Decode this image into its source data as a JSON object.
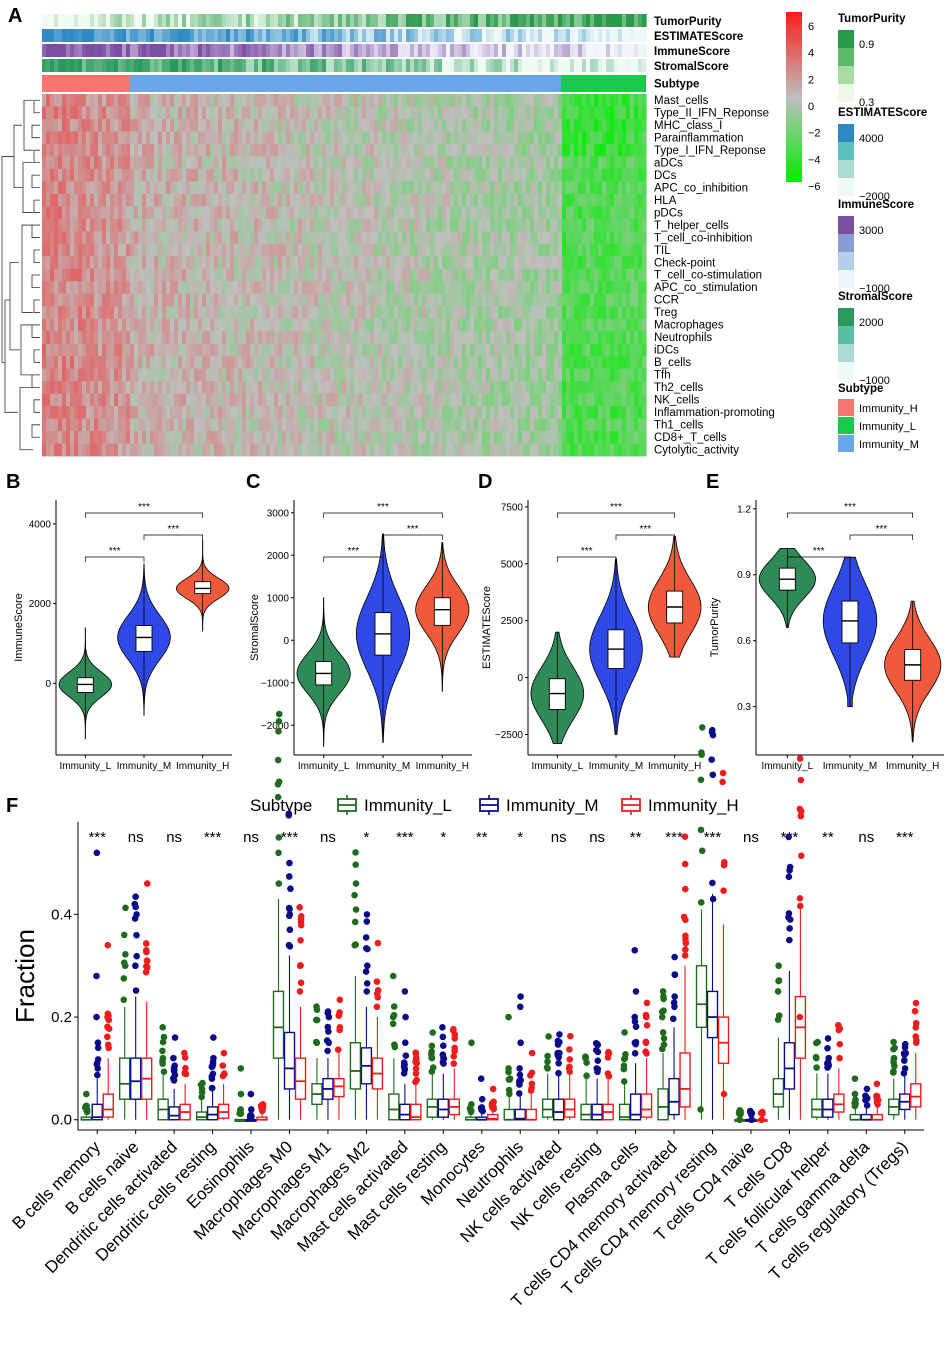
{
  "panel_labels": [
    "A",
    "B",
    "C",
    "D",
    "E",
    "F"
  ],
  "heatmap": {
    "annotation_tracks": [
      "TumorPurity",
      "ESTIMATEScore",
      "ImmuneScore",
      "StromalScore",
      "Subtype"
    ],
    "rows": [
      "Mast_cells",
      "Type_II_IFN_Reponse",
      "MHC_class_I",
      "Parainflammation",
      "Type_I_IFN_Reponse",
      "aDCs",
      "DCs",
      "APC_co_inhibition",
      "HLA",
      "pDCs",
      "T_helper_cells",
      "T_cell_co-inhibition",
      "TIL",
      "Check-point",
      "T_cell_co-stimulation",
      "APC_co_stimulation",
      "CCR",
      "Treg",
      "Macrophages",
      "Neutrophils",
      "iDCs",
      "B_cells",
      "Tfh",
      "Th2_cells",
      "NK_cells",
      "Inflammation-promoting",
      "Th1_cells",
      "CD8+_T_cells",
      "Cytolytic_activity"
    ],
    "colorbar": {
      "ticks": [
        "6",
        "4",
        "2",
        "0",
        "−2",
        "−4",
        "−6"
      ],
      "high": "#ff1a1a",
      "mid": "#bfbfbf",
      "low": "#00ee00"
    },
    "legend": {
      "tumor_purity": {
        "title": "TumorPurity",
        "labels": [
          "0.9",
          "0.3"
        ]
      },
      "estimate": {
        "title": "ESTIMATEScore",
        "labels": [
          "4000",
          "−2000"
        ]
      },
      "immune": {
        "title": "ImmuneScore",
        "labels": [
          "3000",
          "−1000"
        ]
      },
      "stromal": {
        "title": "StromalScore",
        "labels": [
          "2000",
          "−1000"
        ]
      },
      "subtype": {
        "title": "Subtype",
        "labels": [
          "Immunity_H",
          "Immunity_L",
          "Immunity_M"
        ]
      }
    },
    "subtype_colors": {
      "Immunity_H": "#f8766d",
      "Immunity_L": "#18c94b",
      "Immunity_M": "#6aa7ea"
    }
  },
  "chart_data": [
    {
      "type": "violin",
      "panel": "B",
      "ylabel": "ImmuneScore",
      "categories": [
        "Immunity_L",
        "Immunity_M",
        "Immunity_H"
      ],
      "yticks": [
        "0",
        "2000",
        "4000"
      ],
      "ylim": [
        -1800,
        4600
      ],
      "medians": [
        -30,
        1150,
        2380
      ],
      "q1": [
        -230,
        800,
        2250
      ],
      "q3": [
        140,
        1450,
        2550
      ],
      "min": [
        -1400,
        -800,
        1300
      ],
      "max": [
        1400,
        3000,
        3600
      ],
      "significance": [
        {
          "pair": "L-M",
          "label": "***"
        },
        {
          "pair": "M-H",
          "label": "***"
        },
        {
          "pair": "L-H",
          "label": "***"
        }
      ]
    },
    {
      "type": "violin",
      "panel": "C",
      "ylabel": "StromalScore",
      "categories": [
        "Immunity_L",
        "Immunity_M",
        "Immunity_H"
      ],
      "yticks": [
        "3000",
        "2000",
        "1000",
        "0",
        "−1000",
        "−2000"
      ],
      "ylim": [
        -2700,
        3300
      ],
      "medians": [
        -780,
        150,
        720
      ],
      "q1": [
        -1050,
        -350,
        350
      ],
      "q3": [
        -500,
        650,
        1000
      ],
      "min": [
        -2500,
        -2400,
        -1200
      ],
      "max": [
        1000,
        2500,
        2300
      ],
      "significance": [
        {
          "pair": "L-M",
          "label": "***"
        },
        {
          "pair": "M-H",
          "label": "***"
        },
        {
          "pair": "L-H",
          "label": "***"
        }
      ]
    },
    {
      "type": "violin",
      "panel": "D",
      "ylabel": "ESTIMATEScore",
      "categories": [
        "Immunity_L",
        "Immunity_M",
        "Immunity_H"
      ],
      "yticks": [
        "7500",
        "5000",
        "2500",
        "0",
        "−2500"
      ],
      "ylim": [
        -3400,
        7800
      ],
      "medians": [
        -700,
        1250,
        3100
      ],
      "q1": [
        -1400,
        400,
        2400
      ],
      "q3": [
        -50,
        2100,
        3800
      ],
      "min": [
        -2900,
        -2500,
        900
      ],
      "max": [
        2000,
        5200,
        6200
      ],
      "significance": [
        {
          "pair": "L-M",
          "label": "***"
        },
        {
          "pair": "M-H",
          "label": "***"
        },
        {
          "pair": "L-H",
          "label": "***"
        }
      ]
    },
    {
      "type": "violin",
      "panel": "E",
      "ylabel": "TumorPurity",
      "categories": [
        "Immunity_L",
        "Immunity_M",
        "Immunity_H"
      ],
      "yticks": [
        "1.2",
        "0.9",
        "0.6",
        "0.3"
      ],
      "ylim": [
        0.08,
        1.24
      ],
      "medians": [
        0.88,
        0.69,
        0.49
      ],
      "q1": [
        0.83,
        0.59,
        0.42
      ],
      "q3": [
        0.93,
        0.78,
        0.56
      ],
      "min": [
        0.66,
        0.3,
        0.14
      ],
      "max": [
        1.02,
        0.98,
        0.78
      ],
      "significance": [
        {
          "pair": "L-M",
          "label": "***"
        },
        {
          "pair": "M-H",
          "label": "***"
        },
        {
          "pair": "L-H",
          "label": "***"
        }
      ]
    },
    {
      "type": "boxplot",
      "panel": "F",
      "ylabel": "Fraction",
      "legend_title": "Subtype",
      "series_names": [
        "Immunity_L",
        "Immunity_M",
        "Immunity_H"
      ],
      "series_colors": [
        "#1e6b1e",
        "#0b0b8a",
        "#ee1c1c"
      ],
      "yticks": [
        "0.0",
        "0.2",
        "0.4"
      ],
      "ylim": [
        -0.02,
        0.58
      ],
      "categories": [
        "B cells memory",
        "B cells naive",
        "Dendritic cells activated",
        "Dendritic cells resting",
        "Eosinophils",
        "Macrophages M0",
        "Macrophages M1",
        "Macrophages M2",
        "Mast cells activated",
        "Mast cells resting",
        "Monocytes",
        "Neutrophils",
        "NK cells activated",
        "NK cells resting",
        "Plasma cells",
        "T cells CD4 memory activated",
        "T cells CD4 memory resting",
        "T cells CD4 naive",
        "T cells CD8",
        "T cells follicular helper",
        "T cells gamma delta",
        "T cells regulatory (Tregs)"
      ],
      "significance": [
        "***",
        "ns",
        "ns",
        "***",
        "ns",
        "***",
        "ns",
        "*",
        "***",
        "*",
        "**",
        "*",
        "ns",
        "ns",
        "**",
        "***",
        "***",
        "ns",
        "***",
        "**",
        "ns",
        "***"
      ],
      "medians": [
        [
          0,
          0.005,
          0.02
        ],
        [
          0.07,
          0.075,
          0.08
        ],
        [
          0.02,
          0.008,
          0.015
        ],
        [
          0.005,
          0.01,
          0.015
        ],
        [
          0,
          0,
          0
        ],
        [
          0.18,
          0.1,
          0.075
        ],
        [
          0.05,
          0.06,
          0.065
        ],
        [
          0.095,
          0.105,
          0.09
        ],
        [
          0.02,
          0.01,
          0.005
        ],
        [
          0.025,
          0.02,
          0.025
        ],
        [
          0,
          0,
          0.002
        ],
        [
          0,
          0.002,
          0
        ],
        [
          0.02,
          0.015,
          0.02
        ],
        [
          0.01,
          0.01,
          0.015
        ],
        [
          0.005,
          0.01,
          0.02
        ],
        [
          0.025,
          0.035,
          0.06
        ],
        [
          0.225,
          0.2,
          0.15
        ],
        [
          0,
          0,
          0
        ],
        [
          0.05,
          0.1,
          0.18
        ],
        [
          0.02,
          0.02,
          0.03
        ],
        [
          0,
          0,
          0
        ],
        [
          0.025,
          0.035,
          0.045
        ]
      ],
      "q1": [
        [
          0,
          0,
          0.005
        ],
        [
          0.04,
          0.04,
          0.04
        ],
        [
          0,
          0,
          0
        ],
        [
          0,
          0,
          0.003
        ],
        [
          0,
          0,
          0
        ],
        [
          0.12,
          0.06,
          0.04
        ],
        [
          0.03,
          0.04,
          0.045
        ],
        [
          0.06,
          0.07,
          0.06
        ],
        [
          0,
          0,
          0
        ],
        [
          0.005,
          0.005,
          0.01
        ],
        [
          0,
          0,
          0
        ],
        [
          0,
          0,
          0
        ],
        [
          0.005,
          0,
          0.005
        ],
        [
          0,
          0,
          0
        ],
        [
          0,
          0,
          0.005
        ],
        [
          0,
          0.01,
          0.025
        ],
        [
          0.18,
          0.16,
          0.11
        ],
        [
          0,
          0,
          0
        ],
        [
          0.025,
          0.06,
          0.12
        ],
        [
          0.005,
          0.005,
          0.015
        ],
        [
          0,
          0,
          0
        ],
        [
          0.01,
          0.02,
          0.025
        ]
      ],
      "q3": [
        [
          0.005,
          0.03,
          0.05
        ],
        [
          0.12,
          0.12,
          0.12
        ],
        [
          0.04,
          0.025,
          0.03
        ],
        [
          0.015,
          0.025,
          0.03
        ],
        [
          0,
          0,
          0.005
        ],
        [
          0.25,
          0.17,
          0.12
        ],
        [
          0.07,
          0.08,
          0.08
        ],
        [
          0.15,
          0.14,
          0.12
        ],
        [
          0.05,
          0.03,
          0.03
        ],
        [
          0.04,
          0.04,
          0.04
        ],
        [
          0.005,
          0.005,
          0.01
        ],
        [
          0.02,
          0.02,
          0.02
        ],
        [
          0.04,
          0.04,
          0.04
        ],
        [
          0.03,
          0.03,
          0.03
        ],
        [
          0.03,
          0.05,
          0.05
        ],
        [
          0.06,
          0.08,
          0.13
        ],
        [
          0.3,
          0.25,
          0.2
        ],
        [
          0,
          0,
          0
        ],
        [
          0.08,
          0.15,
          0.24
        ],
        [
          0.04,
          0.04,
          0.05
        ],
        [
          0.01,
          0.01,
          0.01
        ],
        [
          0.04,
          0.05,
          0.07
        ]
      ],
      "whisk_max": [
        [
          0.015,
          0.08,
          0.12
        ],
        [
          0.22,
          0.24,
          0.23
        ],
        [
          0.09,
          0.06,
          0.07
        ],
        [
          0.04,
          0.06,
          0.07
        ],
        [
          0,
          0.005,
          0.015
        ],
        [
          0.43,
          0.32,
          0.22
        ],
        [
          0.12,
          0.12,
          0.13
        ],
        [
          0.28,
          0.22,
          0.2
        ],
        [
          0.12,
          0.07,
          0.07
        ],
        [
          0.09,
          0.09,
          0.1
        ],
        [
          0.012,
          0.015,
          0.02
        ],
        [
          0.05,
          0.05,
          0.05
        ],
        [
          0.09,
          0.09,
          0.09
        ],
        [
          0.08,
          0.08,
          0.08
        ],
        [
          0.07,
          0.11,
          0.12
        ],
        [
          0.13,
          0.18,
          0.3
        ],
        [
          0.41,
          0.44,
          0.38
        ],
        [
          0,
          0,
          0
        ],
        [
          0.16,
          0.29,
          0.41
        ],
        [
          0.09,
          0.09,
          0.1
        ],
        [
          0.025,
          0.025,
          0.025
        ],
        [
          0.08,
          0.09,
          0.13
        ]
      ],
      "outliers": [
        [
          [
            0.02,
            0.05
          ],
          [
            0.1,
            0.15,
            0.2,
            0.28,
            0.52
          ],
          [
            0.14,
            0.2,
            0.34
          ]
        ],
        [
          [
            0.3,
            0.36
          ],
          [
            0.3,
            0.4,
            0.42
          ],
          [
            0.31,
            0.33,
            0.46
          ]
        ],
        [
          [
            0.12,
            0.18
          ],
          [
            0.08,
            0.12,
            0.16
          ],
          [
            0.09,
            0.13
          ]
        ],
        [
          [
            0.06
          ],
          [
            0.08,
            0.12,
            0.16
          ],
          [
            0.09
          ]
        ],
        [
          [
            0.02,
            0.05,
            0.1
          ],
          [
            0.02,
            0.05
          ],
          [
            0.02,
            0.03
          ]
        ],
        [
          [
            0.46,
            0.52,
            0.55
          ],
          [
            0.34,
            0.4,
            0.45,
            0.5
          ],
          [
            0.25,
            0.3
          ]
        ],
        [
          [
            0.15
          ],
          [
            0.15,
            0.2
          ],
          [
            0.18
          ]
        ],
        [
          [
            0.34,
            0.46
          ],
          [
            0.25,
            0.3,
            0.4
          ],
          [
            0.22
          ]
        ],
        [
          [
            0.2,
            0.28
          ],
          [
            0.1,
            0.15,
            0.2,
            0.25
          ],
          [
            0.09,
            0.12
          ]
        ],
        [
          [
            0.12
          ],
          [
            0.12,
            0.18
          ],
          [
            0.14
          ]
        ],
        [
          [
            0.03,
            0.15
          ],
          [
            0.04,
            0.08
          ],
          [
            0.03,
            0.06
          ]
        ],
        [
          [
            0.1,
            0.2
          ],
          [
            0.1,
            0.15,
            0.22,
            0.24
          ],
          [
            0.07,
            0.13
          ]
        ],
        [
          [
            0.1
          ],
          [
            0.11,
            0.13
          ],
          [
            0.1
          ]
        ],
        [
          [
            0.12
          ],
          [
            0.1
          ],
          [
            0.09
          ]
        ],
        [
          [
            0.12,
            0.17
          ],
          [
            0.15,
            0.2,
            0.25,
            0.33
          ],
          [
            0.15,
            0.2
          ]
        ],
        [
          [
            0.2,
            0.25
          ],
          [
            0.22,
            0.24
          ],
          [
            0.32
          ]
        ],
        [
          [
            0.02
          ],
          [
            0.43
          ],
          [
            0.05
          ]
        ],
        [
          [
            0
          ],
          [
            0
          ],
          [
            0
          ]
        ],
        [
          [
            0.25,
            0.3
          ],
          [
            0.35,
            0.39
          ],
          [
            0.2
          ]
        ],
        [
          [
            0.12
          ],
          [
            0.12
          ],
          [
            0.12
          ]
        ],
        [
          [
            0.05,
            0.08
          ],
          [
            0.06
          ],
          [
            0.07
          ]
        ],
        [
          [
            0.12,
            0.14
          ],
          [
            0.1,
            0.13
          ],
          [
            0.15
          ]
        ]
      ]
    }
  ]
}
